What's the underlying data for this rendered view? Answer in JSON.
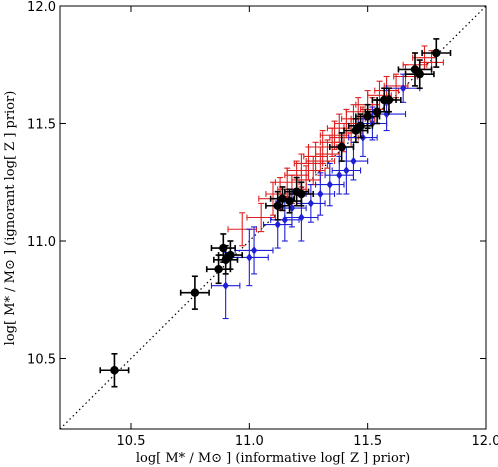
{
  "chart_data": {
    "type": "scatter",
    "xlabel": "log[ M* / M⊙ ] (informative log[ Z ] prior)",
    "ylabel": "log[ M* / M⊙ ] (ignorant log[ Z ] prior)",
    "xlim": [
      10.2,
      12.0
    ],
    "ylim": [
      10.2,
      12.0
    ],
    "xticks": [
      "10.5",
      "11.0",
      "11.5",
      "12.0"
    ],
    "yticks": [
      "10.5",
      "11.0",
      "11.5",
      "12.0"
    ],
    "reference_line": {
      "style": "dotted",
      "from": [
        10.2,
        10.2
      ],
      "to": [
        12.0,
        12.0
      ]
    },
    "grid": false,
    "series": [
      {
        "color": "#000000",
        "marker": "circle",
        "points": [
          {
            "x": 10.43,
            "y": 10.45,
            "xerr": 0.06,
            "yerr": 0.07
          },
          {
            "x": 10.77,
            "y": 10.78,
            "xerr": 0.06,
            "yerr": 0.07
          },
          {
            "x": 10.87,
            "y": 10.88,
            "xerr": 0.05,
            "yerr": 0.06
          },
          {
            "x": 10.89,
            "y": 10.97,
            "xerr": 0.05,
            "yerr": 0.06
          },
          {
            "x": 10.9,
            "y": 10.92,
            "xerr": 0.05,
            "yerr": 0.06
          },
          {
            "x": 10.92,
            "y": 10.94,
            "xerr": 0.05,
            "yerr": 0.06
          },
          {
            "x": 11.12,
            "y": 11.15,
            "xerr": 0.05,
            "yerr": 0.06
          },
          {
            "x": 11.14,
            "y": 11.18,
            "xerr": 0.05,
            "yerr": 0.05
          },
          {
            "x": 11.17,
            "y": 11.17,
            "xerr": 0.05,
            "yerr": 0.05
          },
          {
            "x": 11.2,
            "y": 11.21,
            "xerr": 0.05,
            "yerr": 0.06
          },
          {
            "x": 11.22,
            "y": 11.2,
            "xerr": 0.05,
            "yerr": 0.05
          },
          {
            "x": 11.39,
            "y": 11.4,
            "xerr": 0.05,
            "yerr": 0.06
          },
          {
            "x": 11.45,
            "y": 11.47,
            "xerr": 0.05,
            "yerr": 0.05
          },
          {
            "x": 11.47,
            "y": 11.49,
            "xerr": 0.05,
            "yerr": 0.05
          },
          {
            "x": 11.5,
            "y": 11.53,
            "xerr": 0.05,
            "yerr": 0.05
          },
          {
            "x": 11.54,
            "y": 11.55,
            "xerr": 0.05,
            "yerr": 0.05
          },
          {
            "x": 11.57,
            "y": 11.6,
            "xerr": 0.05,
            "yerr": 0.05
          },
          {
            "x": 11.59,
            "y": 11.6,
            "xerr": 0.05,
            "yerr": 0.05
          },
          {
            "x": 11.7,
            "y": 11.73,
            "xerr": 0.07,
            "yerr": 0.07
          },
          {
            "x": 11.72,
            "y": 11.71,
            "xerr": 0.06,
            "yerr": 0.06
          },
          {
            "x": 11.79,
            "y": 11.8,
            "xerr": 0.06,
            "yerr": 0.06
          }
        ]
      },
      {
        "color": "#e02020",
        "marker": "none",
        "points": [
          {
            "x": 10.97,
            "y": 11.05,
            "xerr": 0.06,
            "yerr": 0.07
          },
          {
            "x": 11.05,
            "y": 11.1,
            "xerr": 0.06,
            "yerr": 0.06
          },
          {
            "x": 11.1,
            "y": 11.18,
            "xerr": 0.06,
            "yerr": 0.07
          },
          {
            "x": 11.13,
            "y": 11.2,
            "xerr": 0.06,
            "yerr": 0.07
          },
          {
            "x": 11.16,
            "y": 11.25,
            "xerr": 0.05,
            "yerr": 0.06
          },
          {
            "x": 11.18,
            "y": 11.22,
            "xerr": 0.06,
            "yerr": 0.06
          },
          {
            "x": 11.2,
            "y": 11.28,
            "xerr": 0.05,
            "yerr": 0.06
          },
          {
            "x": 11.22,
            "y": 11.3,
            "xerr": 0.06,
            "yerr": 0.07
          },
          {
            "x": 11.24,
            "y": 11.26,
            "xerr": 0.06,
            "yerr": 0.06
          },
          {
            "x": 11.25,
            "y": 11.33,
            "xerr": 0.06,
            "yerr": 0.07
          },
          {
            "x": 11.27,
            "y": 11.3,
            "xerr": 0.05,
            "yerr": 0.06
          },
          {
            "x": 11.28,
            "y": 11.36,
            "xerr": 0.05,
            "yerr": 0.06
          },
          {
            "x": 11.3,
            "y": 11.34,
            "xerr": 0.06,
            "yerr": 0.06
          },
          {
            "x": 11.31,
            "y": 11.4,
            "xerr": 0.06,
            "yerr": 0.07
          },
          {
            "x": 11.33,
            "y": 11.37,
            "xerr": 0.05,
            "yerr": 0.06
          },
          {
            "x": 11.35,
            "y": 11.42,
            "xerr": 0.05,
            "yerr": 0.06
          },
          {
            "x": 11.36,
            "y": 11.45,
            "xerr": 0.06,
            "yerr": 0.06
          },
          {
            "x": 11.38,
            "y": 11.48,
            "xerr": 0.05,
            "yerr": 0.06
          },
          {
            "x": 11.4,
            "y": 11.44,
            "xerr": 0.06,
            "yerr": 0.06
          },
          {
            "x": 11.41,
            "y": 11.5,
            "xerr": 0.05,
            "yerr": 0.06
          },
          {
            "x": 11.43,
            "y": 11.46,
            "xerr": 0.05,
            "yerr": 0.06
          },
          {
            "x": 11.44,
            "y": 11.52,
            "xerr": 0.05,
            "yerr": 0.06
          },
          {
            "x": 11.46,
            "y": 11.55,
            "xerr": 0.05,
            "yerr": 0.06
          },
          {
            "x": 11.48,
            "y": 11.52,
            "xerr": 0.05,
            "yerr": 0.05
          },
          {
            "x": 11.5,
            "y": 11.58,
            "xerr": 0.05,
            "yerr": 0.06
          },
          {
            "x": 11.52,
            "y": 11.56,
            "xerr": 0.05,
            "yerr": 0.05
          },
          {
            "x": 11.55,
            "y": 11.62,
            "xerr": 0.05,
            "yerr": 0.06
          },
          {
            "x": 11.58,
            "y": 11.64,
            "xerr": 0.05,
            "yerr": 0.06
          },
          {
            "x": 11.62,
            "y": 11.66,
            "xerr": 0.05,
            "yerr": 0.05
          },
          {
            "x": 11.66,
            "y": 11.7,
            "xerr": 0.05,
            "yerr": 0.05
          },
          {
            "x": 11.7,
            "y": 11.75,
            "xerr": 0.05,
            "yerr": 0.05
          },
          {
            "x": 11.74,
            "y": 11.78,
            "xerr": 0.05,
            "yerr": 0.05
          },
          {
            "x": 11.77,
            "y": 11.76,
            "xerr": 0.05,
            "yerr": 0.05
          }
        ]
      },
      {
        "color": "#1f1fd6",
        "marker": "diamond",
        "points": [
          {
            "x": 10.9,
            "y": 10.81,
            "xerr": 0.06,
            "yerr": 0.14
          },
          {
            "x": 11.0,
            "y": 10.93,
            "xerr": 0.08,
            "yerr": 0.12
          },
          {
            "x": 11.02,
            "y": 10.96,
            "xerr": 0.08,
            "yerr": 0.1
          },
          {
            "x": 11.12,
            "y": 11.07,
            "xerr": 0.06,
            "yerr": 0.1
          },
          {
            "x": 11.15,
            "y": 11.09,
            "xerr": 0.06,
            "yerr": 0.09
          },
          {
            "x": 11.18,
            "y": 11.14,
            "xerr": 0.06,
            "yerr": 0.08
          },
          {
            "x": 11.22,
            "y": 11.1,
            "xerr": 0.07,
            "yerr": 0.1
          },
          {
            "x": 11.26,
            "y": 11.16,
            "xerr": 0.06,
            "yerr": 0.08
          },
          {
            "x": 11.3,
            "y": 11.2,
            "xerr": 0.06,
            "yerr": 0.09
          },
          {
            "x": 11.34,
            "y": 11.24,
            "xerr": 0.06,
            "yerr": 0.09
          },
          {
            "x": 11.38,
            "y": 11.28,
            "xerr": 0.06,
            "yerr": 0.08
          },
          {
            "x": 11.41,
            "y": 11.3,
            "xerr": 0.06,
            "yerr": 0.1
          },
          {
            "x": 11.44,
            "y": 11.34,
            "xerr": 0.06,
            "yerr": 0.08
          },
          {
            "x": 11.48,
            "y": 11.44,
            "xerr": 0.06,
            "yerr": 0.08
          },
          {
            "x": 11.52,
            "y": 11.5,
            "xerr": 0.06,
            "yerr": 0.07
          },
          {
            "x": 11.58,
            "y": 11.54,
            "xerr": 0.08,
            "yerr": 0.07
          },
          {
            "x": 11.65,
            "y": 11.65,
            "xerr": 0.07,
            "yerr": 0.06
          }
        ]
      }
    ]
  }
}
